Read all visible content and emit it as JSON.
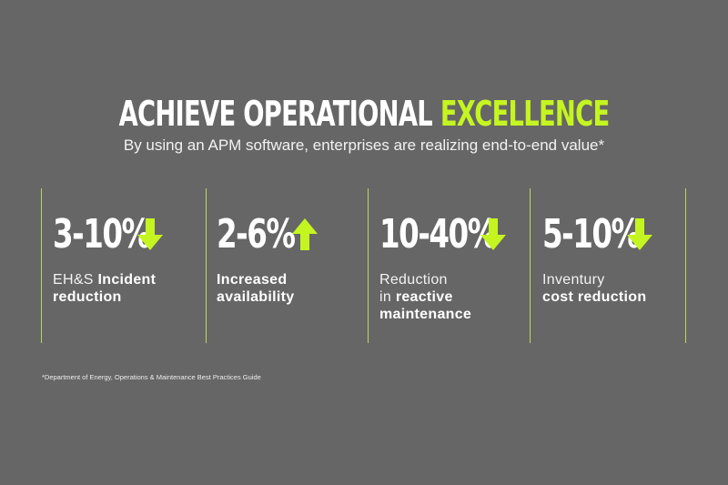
{
  "header": {
    "title_main": "ACHIEVE OPERATIONAL ",
    "title_accent": "EXCELLENCE",
    "subtitle": "By using an APM software, enterprises are realizing end-to-end value*"
  },
  "colors": {
    "background": "#666666",
    "accent": "#c5f520",
    "text": "#ffffff"
  },
  "stats": [
    {
      "value": "3-10%",
      "direction": "down",
      "icon": "arrow-down-icon",
      "label_line1_pre": "EH&S ",
      "label_line1_bold": "Incident",
      "label_line2_pre": "",
      "label_line2_bold": "reduction",
      "label_line3_bold": ""
    },
    {
      "value": "2-6%",
      "direction": "up",
      "icon": "arrow-up-icon",
      "label_line1_pre": "",
      "label_line1_bold": "Increased",
      "label_line2_pre": "",
      "label_line2_bold": "availability",
      "label_line3_bold": ""
    },
    {
      "value": "10-40%",
      "direction": "down",
      "icon": "arrow-down-icon",
      "label_line1_pre": "Reduction",
      "label_line1_bold": "",
      "label_line2_pre": "in ",
      "label_line2_bold": "reactive",
      "label_line3_bold": "maintenance"
    },
    {
      "value": "5-10%",
      "direction": "down",
      "icon": "arrow-down-icon",
      "label_line1_pre": "Inventury",
      "label_line1_bold": "",
      "label_line2_pre": "",
      "label_line2_bold": "cost reduction",
      "label_line3_bold": ""
    }
  ],
  "footnote": "*Department of Energy, Operations & Maintenance Best Practices Guide"
}
